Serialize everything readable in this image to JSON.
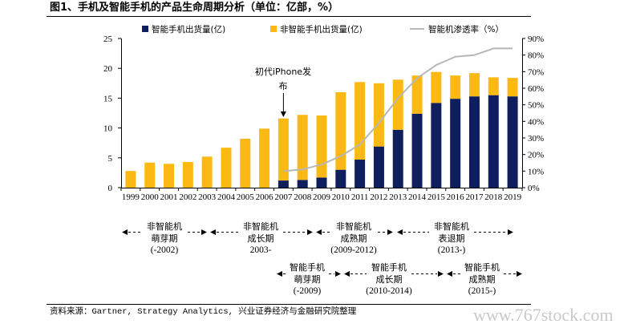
{
  "chart_data": {
    "type": "bar",
    "stacked": true,
    "title": "图1、手机及智能手机的产品生命周期分析（单位：亿部，%）",
    "categories": [
      "1999",
      "2000",
      "2001",
      "2002",
      "2003",
      "2004",
      "2005",
      "2006",
      "2007",
      "2008",
      "2009",
      "2010",
      "2011",
      "2012",
      "2013",
      "2014",
      "2015",
      "2016",
      "2017",
      "2018",
      "2019"
    ],
    "series": [
      {
        "name": "智能手机出货量(亿)",
        "type": "bar",
        "axis": "left",
        "color": "#0f1f5e",
        "values": [
          0,
          0,
          0,
          0,
          0,
          0,
          0,
          0,
          1.2,
          1.3,
          1.7,
          3.0,
          4.7,
          6.9,
          9.7,
          12.4,
          14.2,
          14.9,
          15.3,
          15.5,
          15.3
        ]
      },
      {
        "name": "非智能手机出货量(亿)",
        "type": "bar",
        "axis": "left",
        "color": "#fdb913",
        "values": [
          2.8,
          4.2,
          4.0,
          4.3,
          5.2,
          6.7,
          8.2,
          9.9,
          10.4,
          10.9,
          10.4,
          13.0,
          13.0,
          10.6,
          8.4,
          6.4,
          5.2,
          3.9,
          3.9,
          3.0,
          3.1
        ]
      },
      {
        "name": "智能机渗透率（%）",
        "type": "line",
        "axis": "right",
        "color": "#b7b7b7",
        "values": [
          null,
          null,
          null,
          null,
          null,
          null,
          null,
          null,
          10,
          11,
          14,
          19,
          26,
          39,
          54,
          66,
          74,
          79,
          80,
          84,
          84
        ]
      }
    ],
    "y_left": {
      "range": [
        0,
        25
      ],
      "ticks": [
        0,
        5,
        10,
        15,
        20,
        25
      ]
    },
    "y_right": {
      "range": [
        0,
        90
      ],
      "ticks": [
        0,
        10,
        20,
        30,
        40,
        50,
        60,
        70,
        80,
        90
      ],
      "tick_labels": [
        "0%",
        "10%",
        "20%",
        "30%",
        "40%",
        "50%",
        "60%",
        "70%",
        "80%",
        "90%"
      ]
    },
    "legend": "top",
    "grid": false,
    "annotations": [
      {
        "text": "初代iPhone发布",
        "x": 2007
      }
    ]
  },
  "lifecycle": {
    "non_smartphone": [
      {
        "label": "非智能机",
        "stage": "萌芽期",
        "period": "(-2002)"
      },
      {
        "label": "非智能机",
        "stage": "成长期",
        "period": "2003-"
      },
      {
        "label": "非智能机",
        "stage": "成熟期",
        "period": "(2009-2012)"
      },
      {
        "label": "非智能机",
        "stage": "表退期",
        "period": "(2013-)"
      }
    ],
    "smartphone": [
      {
        "label": "智能手机",
        "stage": "萌芽期",
        "period": "(-2009)"
      },
      {
        "label": "智能手机",
        "stage": "成长期",
        "period": "(2010-2014)"
      },
      {
        "label": "智能手机",
        "stage": "成熟期",
        "period": "(2015-)"
      }
    ]
  },
  "source": "资料来源：Gartner, Strategy Analytics, 兴业证券经济与金融研究院整理",
  "watermark": "www.767stock.com"
}
